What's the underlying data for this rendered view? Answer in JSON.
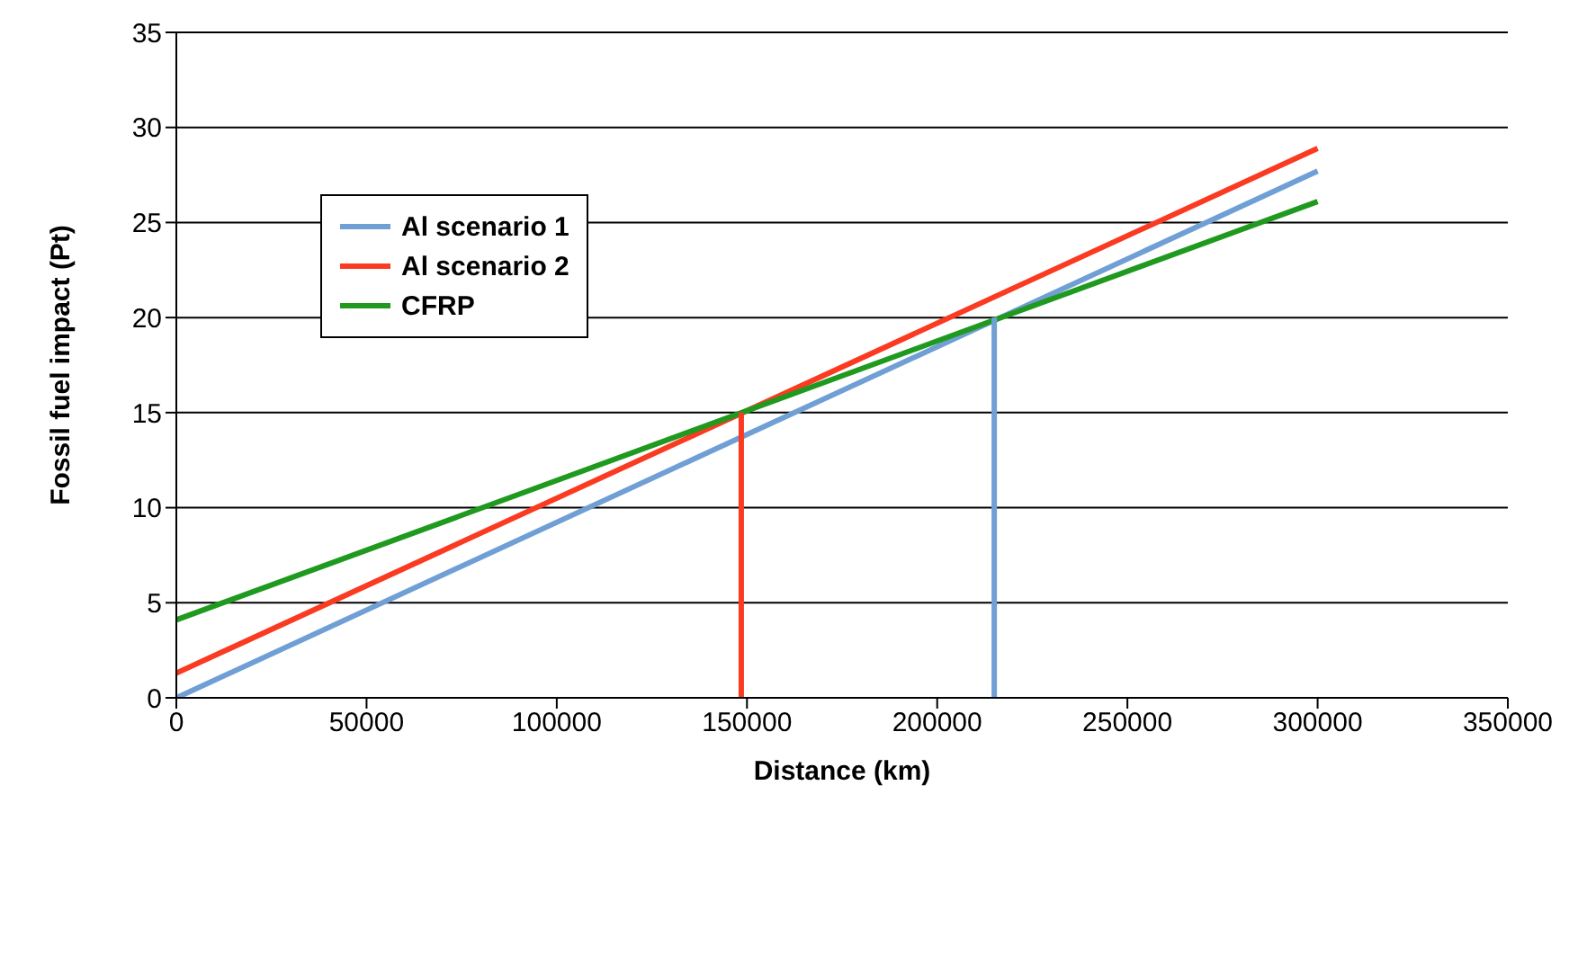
{
  "chart_data": {
    "type": "line",
    "xlabel": "Distance (km)",
    "ylabel": "Fossil fuel impact (Pt)",
    "xlim": [
      0,
      350000
    ],
    "xticks": [
      0,
      50000,
      100000,
      150000,
      200000,
      250000,
      300000,
      350000
    ],
    "ylim": [
      0,
      35
    ],
    "yticks": [
      0,
      5,
      10,
      15,
      20,
      25,
      30,
      35
    ],
    "grid": "y",
    "legend": "top left",
    "marker": "none",
    "line_style": "solid",
    "series": [
      {
        "name": "Al scenario 1",
        "color": "#6f9fd4",
        "x": [
          0,
          300000
        ],
        "values": [
          0,
          27.7
        ]
      },
      {
        "name": "Al scenario 2",
        "color": "#fb3a22",
        "x": [
          0,
          300000
        ],
        "values": [
          1.3,
          28.9
        ]
      },
      {
        "name": "CFRP",
        "color": "#1f9a1f",
        "x": [
          0,
          300000
        ],
        "values": [
          4.1,
          26.1
        ]
      },
      {
        "color": "#fb3a22",
        "x": [
          148500,
          148500
        ],
        "values": [
          0,
          15
        ]
      },
      {
        "color": "#6f9fd4",
        "x": [
          215000,
          215000
        ],
        "values": [
          0,
          20
        ]
      }
    ]
  }
}
